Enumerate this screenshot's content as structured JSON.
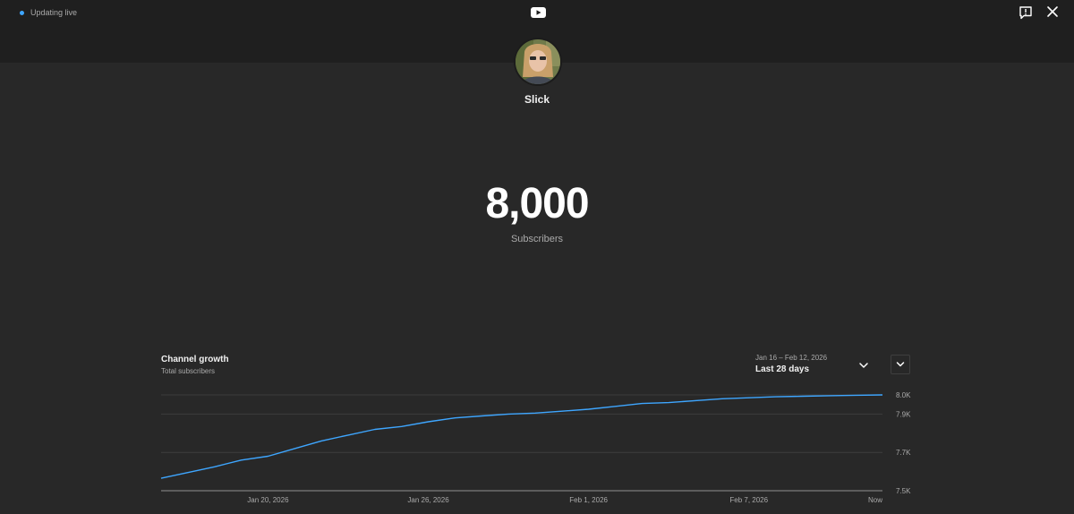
{
  "status": {
    "live_label": "Updating live"
  },
  "header": {
    "logo": "youtube-logo-icon",
    "feedback_icon": "feedback-icon",
    "close_icon": "close-icon"
  },
  "channel": {
    "name": "Slick"
  },
  "stats": {
    "subscriber_count": "8,000",
    "subscriber_label": "Subscribers"
  },
  "growth": {
    "title": "Channel growth",
    "subtitle": "Total subscribers",
    "date_range": "Jan 16 – Feb 12, 2026",
    "range_label": "Last 28 days"
  },
  "colors": {
    "line": "#3ea6ff",
    "accent_dot": "#3ea6ff",
    "background": "#282828",
    "topbar": "#1f1f1f"
  },
  "chart_data": {
    "type": "line",
    "x": [
      "Jan 16",
      "Jan 17",
      "Jan 18",
      "Jan 19",
      "Jan 20",
      "Jan 21",
      "Jan 22",
      "Jan 23",
      "Jan 24",
      "Jan 25",
      "Jan 26",
      "Jan 27",
      "Jan 28",
      "Jan 29",
      "Jan 30",
      "Jan 31",
      "Feb 1",
      "Feb 2",
      "Feb 3",
      "Feb 4",
      "Feb 5",
      "Feb 6",
      "Feb 7",
      "Feb 8",
      "Feb 9",
      "Feb 10",
      "Feb 11",
      "Feb 12"
    ],
    "series": [
      {
        "values": [
          7565,
          7595,
          7625,
          7660,
          7680,
          7720,
          7760,
          7790,
          7820,
          7835,
          7860,
          7880,
          7890,
          7900,
          7905,
          7915,
          7925,
          7940,
          7955,
          7960,
          7970,
          7980,
          7985,
          7990,
          7993,
          7996,
          7998,
          8000
        ]
      }
    ],
    "x_ticks": [
      "Jan 20, 2026",
      "Jan 26, 2026",
      "Feb 1, 2026",
      "Feb 7, 2026",
      "Now"
    ],
    "x_tick_index": [
      4,
      10,
      16,
      22,
      27
    ],
    "y_ticks": [
      "8.0K",
      "7.9K",
      "7.7K",
      "7.5K"
    ],
    "y_tick_values": [
      8000,
      7900,
      7700,
      7500
    ],
    "ylim": [
      7500,
      8000
    ],
    "grid": true
  }
}
